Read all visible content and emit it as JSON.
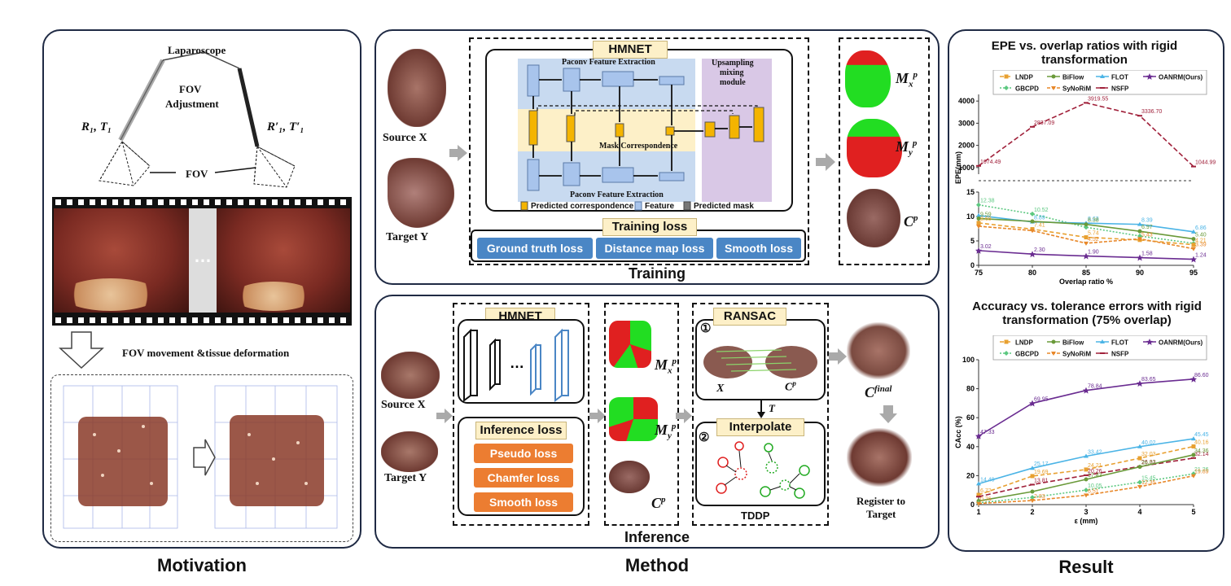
{
  "motivation": {
    "caption": "Motivation",
    "laparoscope": "Laparoscope",
    "fov_adjustment_1": "FOV",
    "fov_adjustment_2": "Adjustment",
    "r1t1": "R₁, T₁",
    "r1t1_prime": "R′₁, T′₁",
    "fov": "FOV",
    "ellipsis": "…",
    "movement_label": "FOV movement &tissue deformation"
  },
  "method": {
    "caption": "Method",
    "training": {
      "title": "Training",
      "hmnet": "HMNET",
      "paconv_top": "Paconv Feature Extraction",
      "paconv_bottom": "Paconv Feature Extraction",
      "mask_correspondence": "Mask Correspondence",
      "upsampling_1": "Upsampling",
      "upsampling_2": "mixing",
      "upsampling_3": "module",
      "legend_predicted": "Predicted correspondence",
      "legend_feature": "Feature",
      "legend_mask": "Predicted mask",
      "training_loss": "Training loss",
      "losses": [
        "Ground truth loss",
        "Distance map loss",
        "Smooth loss"
      ],
      "source": "Source X",
      "target": "Target Y",
      "out_mx": "M",
      "out_my": "M",
      "out_cp": "C"
    },
    "inference": {
      "title": "Inference",
      "hmnet": "HMNET",
      "dots": "…",
      "inference_loss": "Inference loss",
      "losses": [
        "Pseudo loss",
        "Chamfer loss",
        "Smooth loss"
      ],
      "source": "Source X",
      "target": "Target Y",
      "ransac": "RANSAC",
      "step1": "①",
      "step2": "②",
      "x_label": "X",
      "cp_label": "C",
      "t_label": "T",
      "interpolate": "Interpolate",
      "tddp": "TDDP",
      "cfinal": "C",
      "register_1": "Register to",
      "register_2": "Target"
    }
  },
  "result": {
    "caption": "Result",
    "legend_labels": [
      "LNDP",
      "BiFlow",
      "FLOT",
      "OANRM(Ours)",
      "GBCPD",
      "SyNoRiM",
      "NSFP"
    ],
    "colors": {
      "LNDP": "#e8a030",
      "BiFlow": "#6a9a3a",
      "FLOT": "#4bb4e6",
      "OANRM": "#6a2c91",
      "GBCPD": "#5cc880",
      "SyNoRiM": "#e8882a",
      "NSFP": "#a0203a"
    }
  },
  "chart_data": [
    {
      "type": "line",
      "title": "EPE vs. overlap ratios with rigid transformation",
      "xlabel": "Overlap ratio %",
      "ylabel": "EPE(mm)",
      "x": [
        75,
        80,
        85,
        90,
        95
      ],
      "x_ticks": [
        "75",
        "80",
        "85",
        "90",
        "95"
      ],
      "y_ticks_lower": [
        "0",
        "5",
        "10",
        "15"
      ],
      "y_ticks_upper": [
        "1000",
        "2000",
        "3000",
        "4000"
      ],
      "broken_axis": true,
      "series": [
        {
          "name": "NSFP",
          "values": [
            1074.49,
            2837.09,
            3919.55,
            3336.7,
            1044.99
          ],
          "labels": [
            "1074.49",
            "2837.09",
            "3919.55",
            "3336.70",
            "1044.99"
          ]
        },
        {
          "name": "GBCPD",
          "values": [
            12.38,
            10.52,
            7.8,
            6.0,
            4.5
          ],
          "labels": [
            "12.38",
            "10.52",
            "",
            "",
            ""
          ]
        },
        {
          "name": "FLOT",
          "values": [
            10.2,
            8.89,
            8.63,
            8.39,
            6.86
          ],
          "labels": [
            "",
            "8.89",
            "8.63",
            "8.39",
            "6.86"
          ]
        },
        {
          "name": "BiFlow",
          "values": [
            9.59,
            9.0,
            8.38,
            6.97,
            5.4
          ],
          "labels": [
            "9.59",
            "",
            "8.38",
            "6.97",
            "5.40"
          ]
        },
        {
          "name": "LNDP",
          "values": [
            8.68,
            7.41,
            5.74,
            5.2,
            4.21
          ],
          "labels": [
            "8.68",
            "7.41",
            "5.74",
            "",
            "4.21"
          ]
        },
        {
          "name": "SyNoRiM",
          "values": [
            8.0,
            7.11,
            4.52,
            5.43,
            3.39
          ],
          "labels": [
            "",
            "",
            "4.52",
            "5.43",
            "3.39"
          ]
        },
        {
          "name": "OANRM(Ours)",
          "values": [
            3.02,
            2.3,
            1.9,
            1.58,
            1.24
          ],
          "labels": [
            "3.02",
            "2.30",
            "1.90",
            "1.58",
            "1.24"
          ]
        }
      ]
    },
    {
      "type": "line",
      "title": "Accuracy vs. tolerance errors with rigid transformation (75% overlap)",
      "xlabel": "ε (mm)",
      "ylabel": "CAcc (%)",
      "x": [
        1,
        2,
        3,
        4,
        5
      ],
      "x_ticks": [
        "1",
        "2",
        "3",
        "4",
        "5"
      ],
      "y_ticks": [
        "0",
        "20",
        "40",
        "60",
        "80",
        "100"
      ],
      "ylim": [
        0,
        100
      ],
      "series": [
        {
          "name": "OANRM(Ours)",
          "values": [
            47.33,
            69.95,
            78.84,
            83.65,
            86.6
          ],
          "labels": [
            "47.33",
            "69.95",
            "78.84",
            "83.65",
            "86.60"
          ]
        },
        {
          "name": "FLOT",
          "values": [
            14.4,
            25.17,
            33.42,
            40.02,
            45.45
          ],
          "labels": [
            "14.40",
            "25.17",
            "33.42",
            "40.02",
            "45.45"
          ]
        },
        {
          "name": "LNDP",
          "values": [
            6.72,
            19.69,
            24.21,
            32.03,
            40.16
          ],
          "labels": [
            "6.72",
            "19.69",
            "24.21",
            "32.03",
            "40.16"
          ]
        },
        {
          "name": "NSFP",
          "values": [
            5.5,
            13.81,
            20.26,
            26.33,
            32.14
          ],
          "labels": [
            "",
            "13.81",
            "20.26",
            "26.33",
            "32.14"
          ]
        },
        {
          "name": "BiFlow",
          "values": [
            2.5,
            9.0,
            17.43,
            26.07,
            34.36
          ],
          "labels": [
            "",
            "",
            "17.43",
            "26.07",
            "34.36"
          ]
        },
        {
          "name": "GBCPD",
          "values": [
            1.2,
            5.0,
            10.05,
            15.45,
            21.26
          ],
          "labels": [
            "",
            "",
            "10.05",
            "15.45",
            "21.26"
          ]
        },
        {
          "name": "SyNoRiM",
          "values": [
            0.76,
            2.83,
            6.51,
            12.35,
            19.89
          ],
          "labels": [
            "0.76",
            "2.83",
            "6.51",
            "12.35",
            "19.89"
          ]
        }
      ]
    }
  ]
}
